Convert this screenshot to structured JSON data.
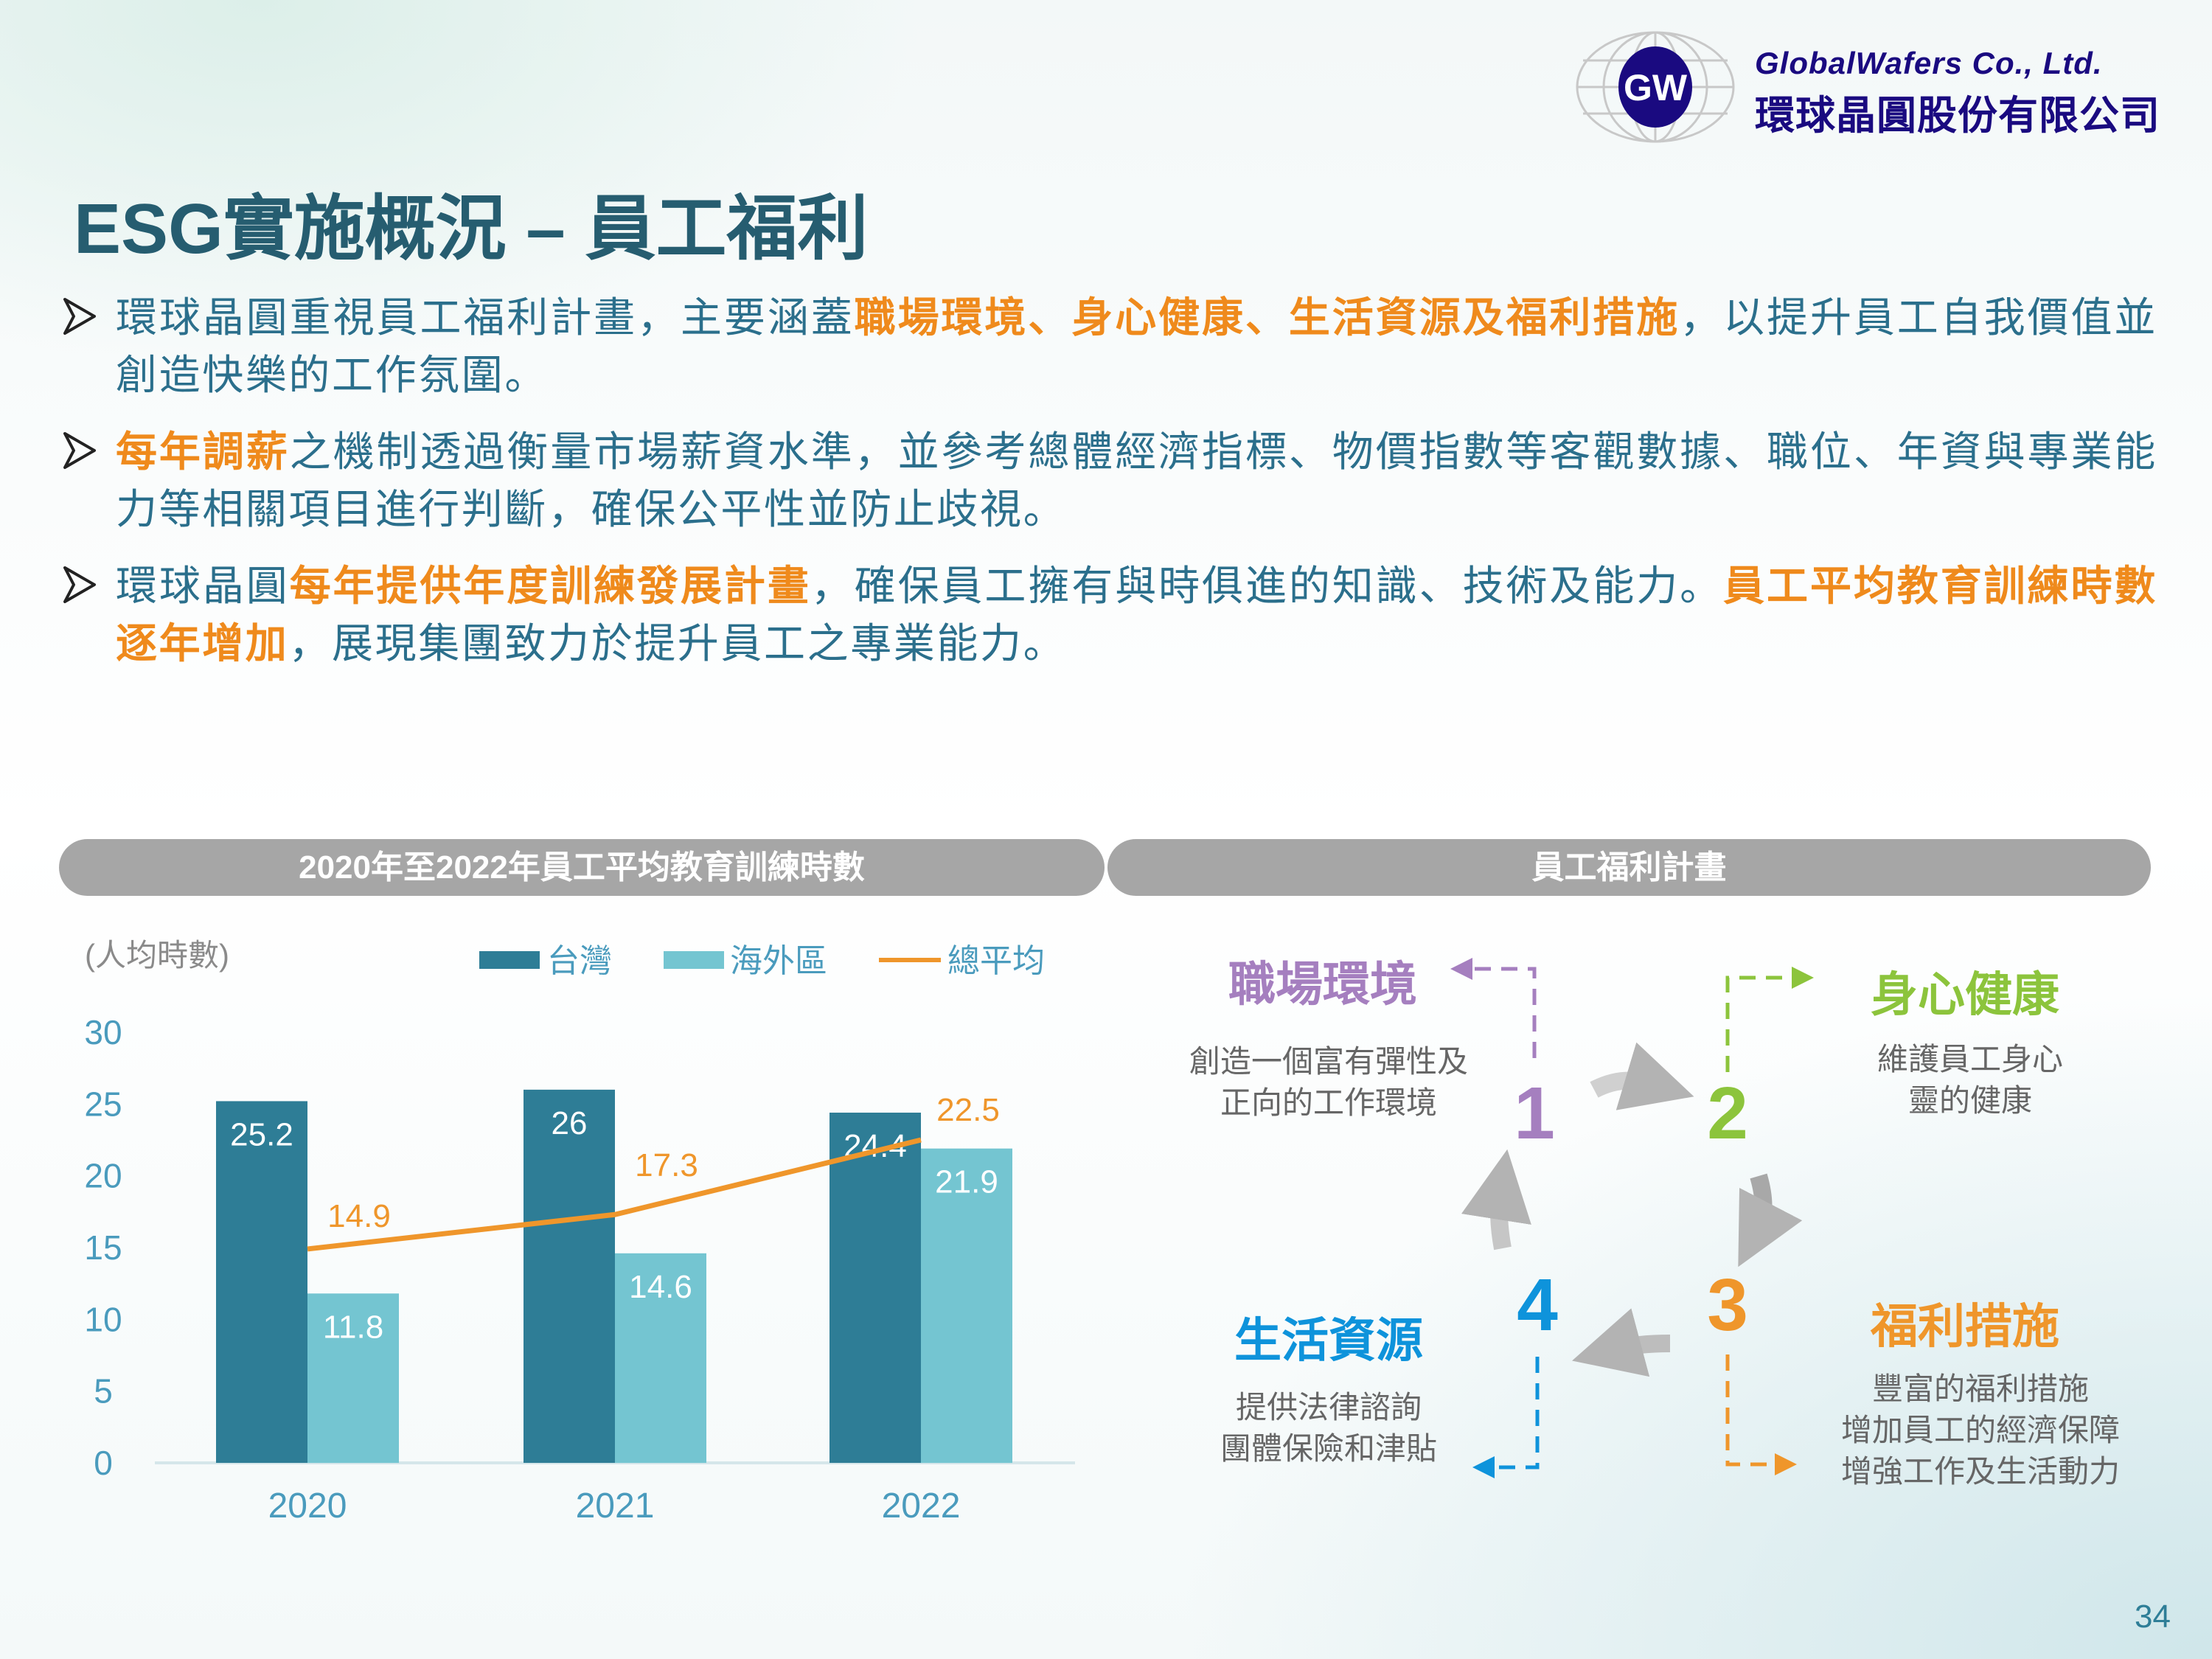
{
  "logo": {
    "en": "GlobalWafers Co., Ltd.",
    "zh": "環球晶圓股份有限公司",
    "mark": "GW"
  },
  "title": "ESG實施概況 – 員工福利",
  "bullets": [
    {
      "segments": [
        {
          "text": "環球晶圓重視員工福利計畫，主要涵蓋",
          "highlight": false
        },
        {
          "text": "職場環境、身心健康、生活資源及福利措施",
          "highlight": true
        },
        {
          "text": "，以提升員工自我價值並創造快樂的工作氛圍。",
          "highlight": false
        }
      ]
    },
    {
      "segments": [
        {
          "text": "每年調薪",
          "highlight": true
        },
        {
          "text": "之機制透過衡量市場薪資水準，並參考總體經濟指標、物價指數等客觀數據、職位、年資與專業能力等相關項目進行判斷，確保公平性並防止歧視。",
          "highlight": false
        }
      ]
    },
    {
      "segments": [
        {
          "text": "環球晶圓",
          "highlight": false
        },
        {
          "text": "每年提供年度訓練發展計畫",
          "highlight": true
        },
        {
          "text": "，確保員工擁有與時俱進的知識、技術及能力。",
          "highlight": false
        },
        {
          "text": "員工平均教育訓練時數逐年增加",
          "highlight": true
        },
        {
          "text": "，展現集團致力於提升員工之專業能力。",
          "highlight": false
        }
      ]
    }
  ],
  "left_panel_title": "2020年至2022年員工平均教育訓練時數",
  "right_panel_title": "員工福利計畫",
  "chart_data": {
    "type": "bar",
    "ylabel": "(人均時數)",
    "categories": [
      "2020",
      "2021",
      "2022"
    ],
    "series": [
      {
        "name": "台灣",
        "type": "bar",
        "color": "#2e7d96",
        "values": [
          25.2,
          26,
          24.4
        ]
      },
      {
        "name": "海外區",
        "type": "bar",
        "color": "#74c5d1",
        "values": [
          11.8,
          14.6,
          21.9
        ]
      },
      {
        "name": "總平均",
        "type": "line",
        "color": "#ef962b",
        "values": [
          14.9,
          17.3,
          22.5
        ]
      }
    ],
    "yticks": [
      "0",
      "5",
      "10",
      "15",
      "20",
      "25",
      "30"
    ],
    "ylim": [
      0,
      30
    ],
    "legend": "top",
    "grid": false
  },
  "welfare": [
    {
      "num": "1",
      "title": "職場環境",
      "desc": [
        "創造一個富有彈性及",
        "正向的工作環境"
      ],
      "color": "#a57fbf"
    },
    {
      "num": "2",
      "title": "身心健康",
      "desc": [
        "維護員工身心",
        "靈的健康"
      ],
      "color": "#8cc43c"
    },
    {
      "num": "3",
      "title": "福利措施",
      "desc": [
        "豐富的福利措施",
        "增加員工的經濟保障",
        "增強工作及生活動力"
      ],
      "color": "#ef962b"
    },
    {
      "num": "4",
      "title": "生活資源",
      "desc": [
        "提供法律諮詢",
        "團體保險和津貼"
      ],
      "color": "#0e93db"
    }
  ],
  "page_number": "34"
}
